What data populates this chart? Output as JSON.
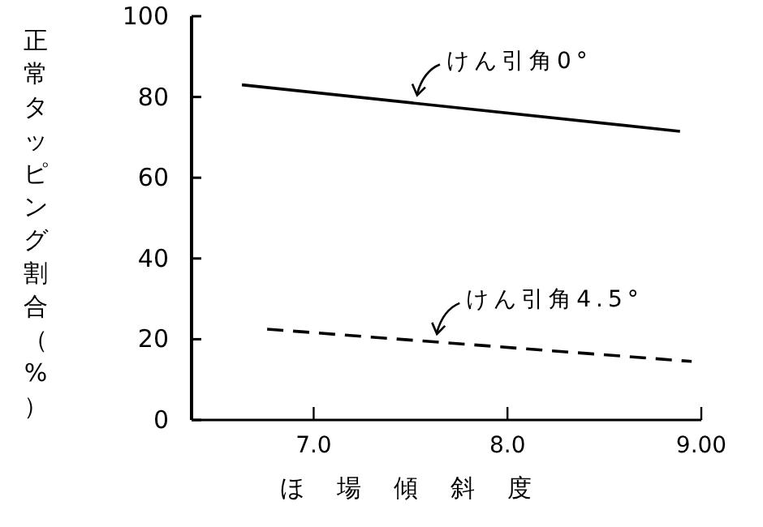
{
  "chart_data": {
    "type": "line",
    "xlabel": "ほ場傾斜度",
    "ylabel": "正常タッピング割合（%）",
    "xlim": [
      6.37,
      9.0
    ],
    "xticks": [
      {
        "value": 7,
        "label": "7.0"
      },
      {
        "value": 8,
        "label": "8.0"
      },
      {
        "value": 9,
        "label": "9.00"
      }
    ],
    "ylim": [
      0,
      100
    ],
    "yticks": [
      0,
      20,
      40,
      60,
      80,
      100
    ],
    "grid": false,
    "marker": "none",
    "series": [
      {
        "name": "けん引角0°",
        "color": "#000000",
        "line_style": "solid",
        "x": [
          6.63,
          8.89
        ],
        "values": [
          83,
          71.5
        ]
      },
      {
        "name": "けん引角4.5°",
        "color": "#000000",
        "line_style": "dashed",
        "x": [
          6.76,
          8.95
        ],
        "values": [
          22.5,
          14.5
        ]
      }
    ]
  }
}
